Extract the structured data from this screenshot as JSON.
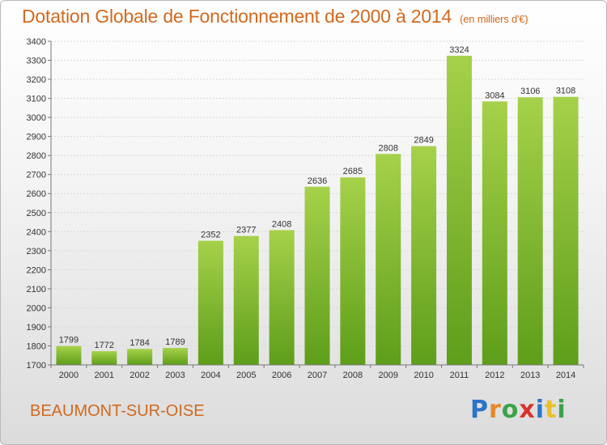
{
  "title": "Dotation Globale de Fonctionnement de 2000 à 2014",
  "unit": "(en milliers d'€)",
  "city": "BEAUMONT-SUR-OISE",
  "logo": {
    "letters": [
      "P",
      "r",
      "o",
      "x",
      "i",
      "t",
      "i"
    ],
    "colors": [
      "#2b74c6",
      "#e8872a",
      "#3aa34a",
      "#d9322e",
      "#2b74c6",
      "#e8c12a",
      "#3aa34a"
    ]
  },
  "colors": {
    "bar_top": "#a6d14a",
    "bar_bottom": "#5e9e1a",
    "title": "#d2691e",
    "grid": "#d8d8d8"
  },
  "chart_data": {
    "type": "bar",
    "categories": [
      "2000",
      "2001",
      "2002",
      "2003",
      "2004",
      "2005",
      "2006",
      "2007",
      "2008",
      "2009",
      "2010",
      "2011",
      "2012",
      "2013",
      "2014"
    ],
    "values": [
      1799,
      1772,
      1784,
      1789,
      2352,
      2377,
      2408,
      2636,
      2685,
      2808,
      2849,
      3324,
      3084,
      3106,
      3108
    ],
    "data_labels": [
      "1799",
      "1772",
      "1784",
      "1789",
      "2352",
      "2377",
      "2408",
      "2636",
      "2685",
      "2808",
      "2849",
      "3324",
      "3084",
      "3106",
      "3108"
    ],
    "title": "Dotation Globale de Fonctionnement de 2000 à 2014",
    "ylim": [
      1700,
      3400
    ],
    "yticks": [
      "1700",
      "1800",
      "1900",
      "2000",
      "2100",
      "2200",
      "2300",
      "2400",
      "2500",
      "2600",
      "2700",
      "2800",
      "2900",
      "3000",
      "3100",
      "3200",
      "3300",
      "3400"
    ],
    "grid": true
  }
}
